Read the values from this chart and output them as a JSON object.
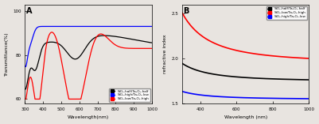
{
  "panel_A": {
    "title": "A",
    "xlabel": "Wavelength(nm)",
    "ylabel": "Transmittance(%)",
    "xlim": [
      300,
      1000
    ],
    "ylim": [
      58,
      103
    ],
    "yticks": [
      60,
      80,
      100
    ],
    "xticks": [
      300,
      400,
      500,
      600,
      700,
      800,
      900,
      1000
    ],
    "bg_color": "#e8e4e0",
    "legend": [
      {
        "label": "SiO₂-half/Ta₂O₅-half",
        "color": "black"
      },
      {
        "label": "SiO₂-high/Ta₂O₅-low",
        "color": "blue"
      },
      {
        "label": "SiO₂-low/Ta₂O₅-high",
        "color": "red"
      }
    ]
  },
  "panel_B": {
    "title": "B",
    "xlabel": "Wavelength (nm)",
    "ylabel": "refractive index",
    "xlim": [
      300,
      1000
    ],
    "ylim": [
      1.5,
      2.6
    ],
    "yticks": [
      1.5,
      2.0,
      2.5
    ],
    "xticks": [
      400,
      600,
      800,
      1000
    ],
    "bg_color": "#e8e4e0",
    "legend": [
      {
        "label": "SiO₂-half/Ta₂O₅-half",
        "color": "black"
      },
      {
        "label": "SiO₂-low/Ta₂O₅-high",
        "color": "red"
      },
      {
        "label": "SiO₂-high/Ta₂O₅-low",
        "color": "blue"
      }
    ]
  }
}
